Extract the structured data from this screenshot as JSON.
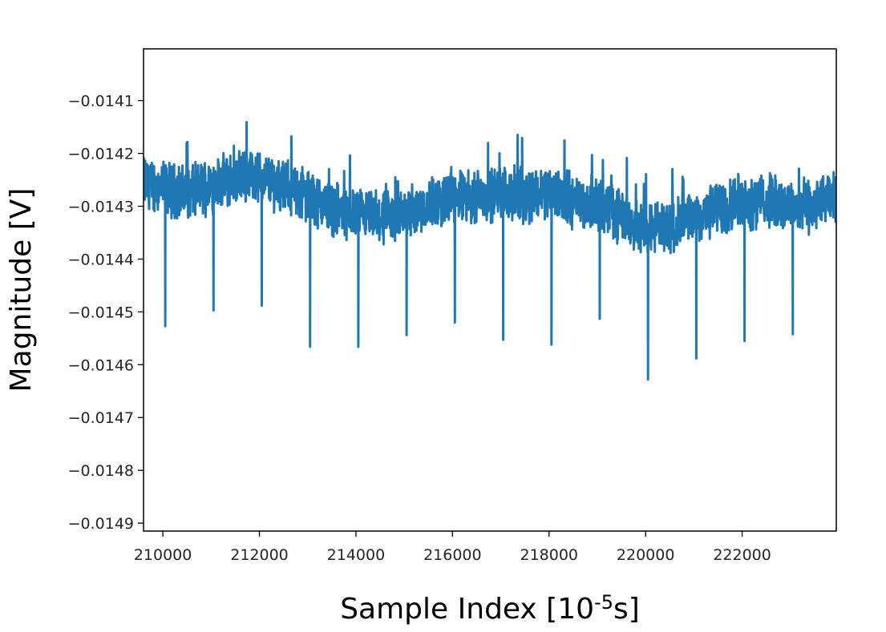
{
  "chart_data": {
    "type": "line",
    "title": "",
    "xlabel": "Sample Index [10",
    "xlabel_sup": "-5",
    "xlabel_suffix": "s]",
    "ylabel": "Magnitude [V]",
    "xlim": [
      209600,
      223950
    ],
    "ylim": [
      -0.014915,
      -0.014002
    ],
    "xticks": [
      210000,
      212000,
      214000,
      216000,
      218000,
      220000,
      222000
    ],
    "xtick_labels": [
      "210000",
      "212000",
      "214000",
      "216000",
      "218000",
      "220000",
      "222000"
    ],
    "yticks": [
      -0.0141,
      -0.0142,
      -0.0143,
      -0.0144,
      -0.0145,
      -0.0146,
      -0.0147,
      -0.0148,
      -0.0149
    ],
    "ytick_labels": [
      "−0.0141",
      "−0.0142",
      "−0.0143",
      "−0.0144",
      "−0.0145",
      "−0.0146",
      "−0.0147",
      "−0.0148",
      "−0.0149"
    ],
    "grid": false,
    "legend": null,
    "line_color": "#1f77b4",
    "series": [
      {
        "baseline_x": [
          209600,
          210000,
          210500,
          211000,
          211800,
          212300,
          213000,
          213800,
          214300,
          214800,
          215300,
          216000,
          216500,
          217000,
          217500,
          218000,
          218500,
          219000,
          219500,
          220000,
          220500,
          221000,
          221500,
          222000,
          222500,
          223000,
          223500,
          223950
        ],
        "baseline_y": [
          -0.014255,
          -0.014265,
          -0.014275,
          -0.01426,
          -0.01424,
          -0.014255,
          -0.01428,
          -0.014315,
          -0.01432,
          -0.014325,
          -0.0143,
          -0.014285,
          -0.01428,
          -0.014275,
          -0.01428,
          -0.01427,
          -0.01429,
          -0.014295,
          -0.01432,
          -0.014345,
          -0.01434,
          -0.014325,
          -0.014305,
          -0.01429,
          -0.01429,
          -0.0143,
          -0.0143,
          -0.014285
        ],
        "spike_x": [
          210050,
          211050,
          212050,
          213050,
          214050,
          215050,
          216050,
          217050,
          218050,
          219050,
          220050,
          221050,
          222050,
          223050
        ],
        "spike_y": [
          -0.014527,
          -0.014497,
          -0.014488,
          -0.014566,
          -0.014566,
          -0.014544,
          -0.01452,
          -0.014553,
          -0.014562,
          -0.014513,
          -0.014628,
          -0.014588,
          -0.014555,
          -0.014542
        ],
        "noise_band": 8e-05
      }
    ]
  }
}
